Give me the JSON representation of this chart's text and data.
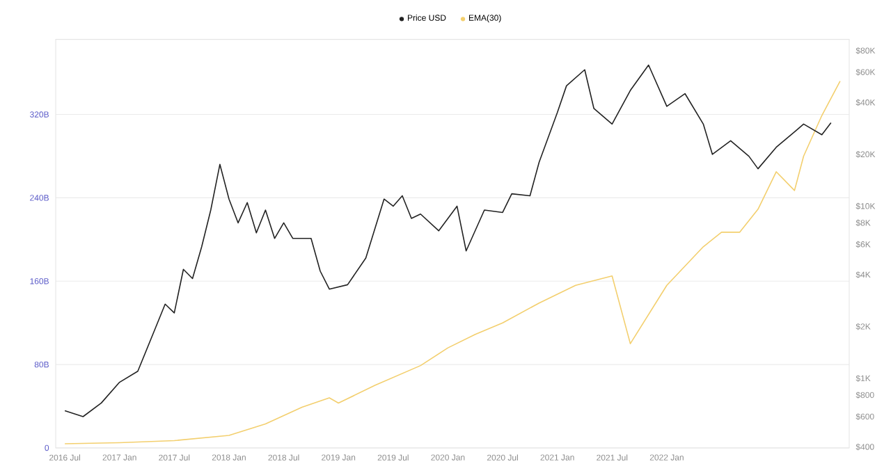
{
  "chart_data": {
    "type": "line",
    "legend": "top",
    "grid": "y",
    "log": "y2",
    "xlim": [
      "2016-06",
      "2023-09"
    ],
    "xticks": [
      {
        "value": "2016-07",
        "label": "2016 Jul"
      },
      {
        "value": "2017-01",
        "label": "2017 Jan"
      },
      {
        "value": "2017-07",
        "label": "2017 Jul"
      },
      {
        "value": "2018-01",
        "label": "2018 Jan"
      },
      {
        "value": "2018-07",
        "label": "2018 Jul"
      },
      {
        "value": "2019-01",
        "label": "2019 Jan"
      },
      {
        "value": "2019-07",
        "label": "2019 Jul"
      },
      {
        "value": "2020-01",
        "label": "2020 Jan"
      },
      {
        "value": "2020-07",
        "label": "2020 Jul"
      },
      {
        "value": "2021-01",
        "label": "2021 Jan"
      },
      {
        "value": "2021-07",
        "label": "2021 Jul"
      },
      {
        "value": "2022-01",
        "label": "2022 Jan"
      }
    ],
    "ylim": [
      0,
      392
    ],
    "yticks": [
      {
        "value": 0,
        "label": "0"
      },
      {
        "value": 80,
        "label": "80B"
      },
      {
        "value": 160,
        "label": "160B"
      },
      {
        "value": 240,
        "label": "240B"
      },
      {
        "value": 320,
        "label": "320B"
      }
    ],
    "y2lim": [
      395,
      93000
    ],
    "y2ticks": [
      {
        "value": 400,
        "label": "$400"
      },
      {
        "value": 600,
        "label": "$600"
      },
      {
        "value": 800,
        "label": "$800"
      },
      {
        "value": 1000,
        "label": "$1K"
      },
      {
        "value": 2000,
        "label": "$2K"
      },
      {
        "value": 4000,
        "label": "$4K"
      },
      {
        "value": 6000,
        "label": "$6K"
      },
      {
        "value": 8000,
        "label": "$8K"
      },
      {
        "value": 10000,
        "label": "$10K"
      },
      {
        "value": 20000,
        "label": "$20K"
      },
      {
        "value": 40000,
        "label": "$40K"
      },
      {
        "value": 60000,
        "label": "$60K"
      },
      {
        "value": 80000,
        "label": "$80K"
      }
    ],
    "series": [
      {
        "name": "Price USD",
        "color": "#222222",
        "axis": "y2",
        "x": [
          "2016-07",
          "2016-09",
          "2016-11",
          "2017-01",
          "2017-03",
          "2017-05",
          "2017-06",
          "2017-07",
          "2017-08",
          "2017-09",
          "2017-10",
          "2017-11",
          "2017-12",
          "2018-01",
          "2018-02",
          "2018-03",
          "2018-04",
          "2018-05",
          "2018-06",
          "2018-07",
          "2018-08",
          "2018-10",
          "2018-11",
          "2018-12",
          "2019-02",
          "2019-04",
          "2019-06",
          "2019-07",
          "2019-08",
          "2019-09",
          "2019-10",
          "2019-12",
          "2020-02",
          "2020-03",
          "2020-05",
          "2020-07",
          "2020-08",
          "2020-10",
          "2020-11",
          "2021-01",
          "2021-02",
          "2021-04",
          "2021-05",
          "2021-07",
          "2021-09",
          "2021-11",
          "2022-01",
          "2022-03",
          "2022-05",
          "2022-06",
          "2022-08",
          "2022-10",
          "2022-11",
          "2023-01",
          "2023-03",
          "2023-04",
          "2023-06",
          "2023-07"
        ],
        "values": [
          650,
          600,
          720,
          950,
          1100,
          2000,
          2700,
          2400,
          4300,
          3800,
          5800,
          9500,
          17500,
          11000,
          8000,
          10500,
          7000,
          9500,
          6500,
          8000,
          6500,
          6500,
          4200,
          3300,
          3500,
          5000,
          11000,
          10000,
          11500,
          8500,
          9000,
          7200,
          10000,
          5500,
          9500,
          9200,
          11800,
          11500,
          18000,
          35000,
          50000,
          62000,
          37000,
          30000,
          47000,
          66000,
          38000,
          45000,
          30000,
          20000,
          24000,
          19500,
          16500,
          22000,
          27000,
          30000,
          26000,
          30500
        ]
      },
      {
        "name": "EMA(30)",
        "color": "#f3cf6e",
        "axis": "y",
        "x": [
          "2016-07",
          "2017-01",
          "2017-07",
          "2018-01",
          "2018-05",
          "2018-09",
          "2018-12",
          "2019-01",
          "2019-05",
          "2019-10",
          "2020-01",
          "2020-04",
          "2020-07",
          "2020-11",
          "2021-03",
          "2021-07",
          "2021-09",
          "2022-01",
          "2022-05",
          "2022-07",
          "2022-09",
          "2022-11",
          "2023-01",
          "2023-03",
          "2023-04",
          "2023-06",
          "2023-08"
        ],
        "values": [
          4,
          5,
          7,
          12,
          23,
          39,
          48,
          43,
          60,
          79,
          96,
          109,
          120,
          139,
          156,
          165,
          100,
          156,
          193,
          207,
          207,
          229,
          265,
          247,
          280,
          319,
          352
        ]
      }
    ]
  }
}
